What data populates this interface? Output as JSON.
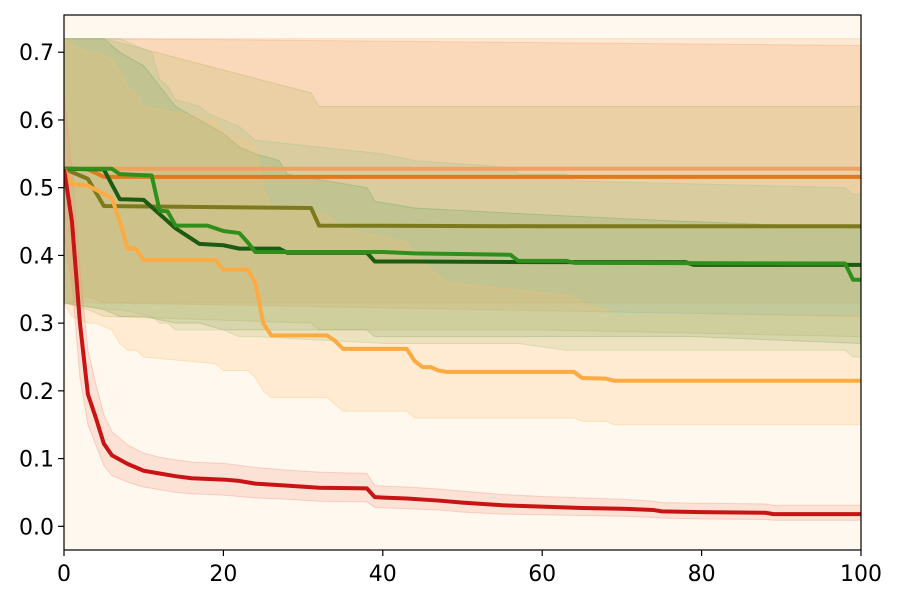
{
  "chart_data": {
    "type": "line",
    "title": "",
    "xlabel": "",
    "ylabel": "",
    "xlim": [
      0,
      100
    ],
    "ylim": [
      -0.035,
      0.755
    ],
    "xticks": [
      0,
      20,
      40,
      60,
      80,
      100
    ],
    "yticks": [
      0.0,
      0.1,
      0.2,
      0.3,
      0.4,
      0.5,
      0.6,
      0.7
    ],
    "xtick_labels": [
      "0",
      "20",
      "40",
      "60",
      "80",
      "100"
    ],
    "ytick_labels": [
      "0.0",
      "0.1",
      "0.2",
      "0.3",
      "0.4",
      "0.5",
      "0.6",
      "0.7"
    ],
    "grid": false,
    "legend": "none",
    "plot_background": "#fff8ee",
    "series": [
      {
        "color": "#f0a060",
        "band_color": "#f4b27a",
        "x": [
          0,
          100
        ],
        "y": [
          0.528,
          0.528
        ],
        "lower": [
          0.33,
          0.33
        ],
        "upper": [
          0.72,
          0.72
        ]
      },
      {
        "color": "#e07a1a",
        "band_color": "#f2a460",
        "x": [
          0,
          1,
          3,
          5,
          100
        ],
        "y": [
          0.528,
          0.528,
          0.527,
          0.516,
          0.516
        ],
        "lower": [
          0.33,
          0.33,
          0.34,
          0.33,
          0.31
        ],
        "upper": [
          0.72,
          0.72,
          0.72,
          0.72,
          0.71
        ]
      },
      {
        "color": "#7d7a1e",
        "band_color": "#b8b060",
        "x": [
          0,
          3,
          5,
          31,
          32,
          60,
          100
        ],
        "y": [
          0.528,
          0.513,
          0.473,
          0.47,
          0.444,
          0.443,
          0.443
        ],
        "lower": [
          0.33,
          0.32,
          0.31,
          0.3,
          0.29,
          0.29,
          0.28
        ],
        "upper": [
          0.72,
          0.72,
          0.72,
          0.64,
          0.62,
          0.62,
          0.62
        ]
      },
      {
        "color": "#1d5a12",
        "band_color": "#5f9a55",
        "x": [
          0,
          5,
          7,
          10,
          14,
          17,
          20,
          22,
          24,
          27,
          28,
          38,
          39,
          44,
          60,
          78,
          79,
          100
        ],
        "y": [
          0.528,
          0.527,
          0.483,
          0.482,
          0.44,
          0.417,
          0.415,
          0.41,
          0.41,
          0.41,
          0.404,
          0.404,
          0.391,
          0.391,
          0.39,
          0.39,
          0.386,
          0.386
        ],
        "lower": [
          0.33,
          0.32,
          0.31,
          0.31,
          0.3,
          0.3,
          0.29,
          0.29,
          0.29,
          0.29,
          0.29,
          0.29,
          0.28,
          0.28,
          0.28,
          0.28,
          0.28,
          0.27
        ],
        "upper": [
          0.72,
          0.72,
          0.7,
          0.68,
          0.62,
          0.6,
          0.58,
          0.56,
          0.55,
          0.54,
          0.52,
          0.5,
          0.48,
          0.47,
          0.46,
          0.45,
          0.45,
          0.44
        ]
      },
      {
        "color": "#2f8f1a",
        "band_color": "#9cc48a",
        "x": [
          0,
          6,
          7,
          11,
          12,
          13,
          14,
          17,
          18,
          20,
          22,
          23,
          24,
          40,
          44,
          56,
          57,
          63,
          64,
          98,
          99,
          100
        ],
        "y": [
          0.528,
          0.528,
          0.52,
          0.518,
          0.466,
          0.465,
          0.444,
          0.444,
          0.444,
          0.436,
          0.433,
          0.42,
          0.405,
          0.405,
          0.403,
          0.401,
          0.392,
          0.392,
          0.389,
          0.388,
          0.364,
          0.364
        ],
        "lower": [
          0.33,
          0.32,
          0.32,
          0.31,
          0.3,
          0.3,
          0.29,
          0.29,
          0.29,
          0.29,
          0.28,
          0.28,
          0.28,
          0.27,
          0.27,
          0.27,
          0.27,
          0.26,
          0.26,
          0.26,
          0.25,
          0.25
        ],
        "upper": [
          0.72,
          0.72,
          0.72,
          0.7,
          0.66,
          0.65,
          0.63,
          0.62,
          0.61,
          0.6,
          0.59,
          0.58,
          0.57,
          0.55,
          0.54,
          0.53,
          0.52,
          0.52,
          0.51,
          0.5,
          0.49,
          0.49
        ]
      },
      {
        "color": "#fbab42",
        "band_color": "#fcc070",
        "x": [
          0,
          1,
          3,
          4,
          6,
          7,
          8,
          9,
          10,
          19,
          20,
          23,
          24,
          25,
          26,
          33,
          34,
          35,
          43,
          44,
          45,
          46,
          47,
          48,
          64,
          65,
          68,
          69,
          100
        ],
        "y": [
          0.528,
          0.505,
          0.503,
          0.497,
          0.485,
          0.45,
          0.41,
          0.41,
          0.393,
          0.393,
          0.379,
          0.379,
          0.36,
          0.3,
          0.282,
          0.282,
          0.274,
          0.262,
          0.262,
          0.244,
          0.235,
          0.235,
          0.23,
          0.228,
          0.228,
          0.219,
          0.218,
          0.215,
          0.215
        ],
        "lower": [
          0.33,
          0.31,
          0.3,
          0.3,
          0.29,
          0.27,
          0.26,
          0.26,
          0.25,
          0.24,
          0.23,
          0.23,
          0.22,
          0.2,
          0.19,
          0.19,
          0.18,
          0.17,
          0.17,
          0.16,
          0.16,
          0.16,
          0.16,
          0.16,
          0.16,
          0.155,
          0.155,
          0.15,
          0.15
        ],
        "upper": [
          0.72,
          0.71,
          0.7,
          0.7,
          0.69,
          0.67,
          0.65,
          0.64,
          0.62,
          0.6,
          0.58,
          0.57,
          0.56,
          0.5,
          0.47,
          0.46,
          0.45,
          0.44,
          0.42,
          0.4,
          0.39,
          0.38,
          0.37,
          0.36,
          0.34,
          0.33,
          0.32,
          0.31,
          0.31
        ]
      },
      {
        "color": "#c81414",
        "band_color": "#f09080",
        "x": [
          0,
          1,
          2,
          3,
          4,
          5,
          6,
          8,
          10,
          12,
          14,
          16,
          20,
          22,
          24,
          28,
          32,
          38,
          39,
          43,
          47,
          50,
          55,
          60,
          65,
          70,
          74,
          75,
          80,
          88,
          89,
          100
        ],
        "y": [
          0.528,
          0.45,
          0.3,
          0.195,
          0.16,
          0.122,
          0.105,
          0.092,
          0.082,
          0.078,
          0.074,
          0.071,
          0.069,
          0.067,
          0.063,
          0.06,
          0.057,
          0.056,
          0.043,
          0.041,
          0.038,
          0.035,
          0.031,
          0.029,
          0.027,
          0.026,
          0.024,
          0.022,
          0.021,
          0.02,
          0.018,
          0.018
        ],
        "lower": [
          0.43,
          0.36,
          0.22,
          0.15,
          0.12,
          0.09,
          0.075,
          0.065,
          0.058,
          0.054,
          0.05,
          0.048,
          0.046,
          0.044,
          0.042,
          0.04,
          0.037,
          0.036,
          0.028,
          0.026,
          0.024,
          0.021,
          0.018,
          0.017,
          0.016,
          0.015,
          0.013,
          0.012,
          0.011,
          0.01,
          0.009,
          0.009
        ],
        "upper": [
          0.64,
          0.53,
          0.38,
          0.26,
          0.21,
          0.165,
          0.14,
          0.12,
          0.108,
          0.102,
          0.098,
          0.095,
          0.093,
          0.09,
          0.087,
          0.083,
          0.08,
          0.078,
          0.06,
          0.058,
          0.055,
          0.052,
          0.047,
          0.044,
          0.042,
          0.04,
          0.037,
          0.035,
          0.034,
          0.033,
          0.031,
          0.031
        ]
      }
    ]
  }
}
